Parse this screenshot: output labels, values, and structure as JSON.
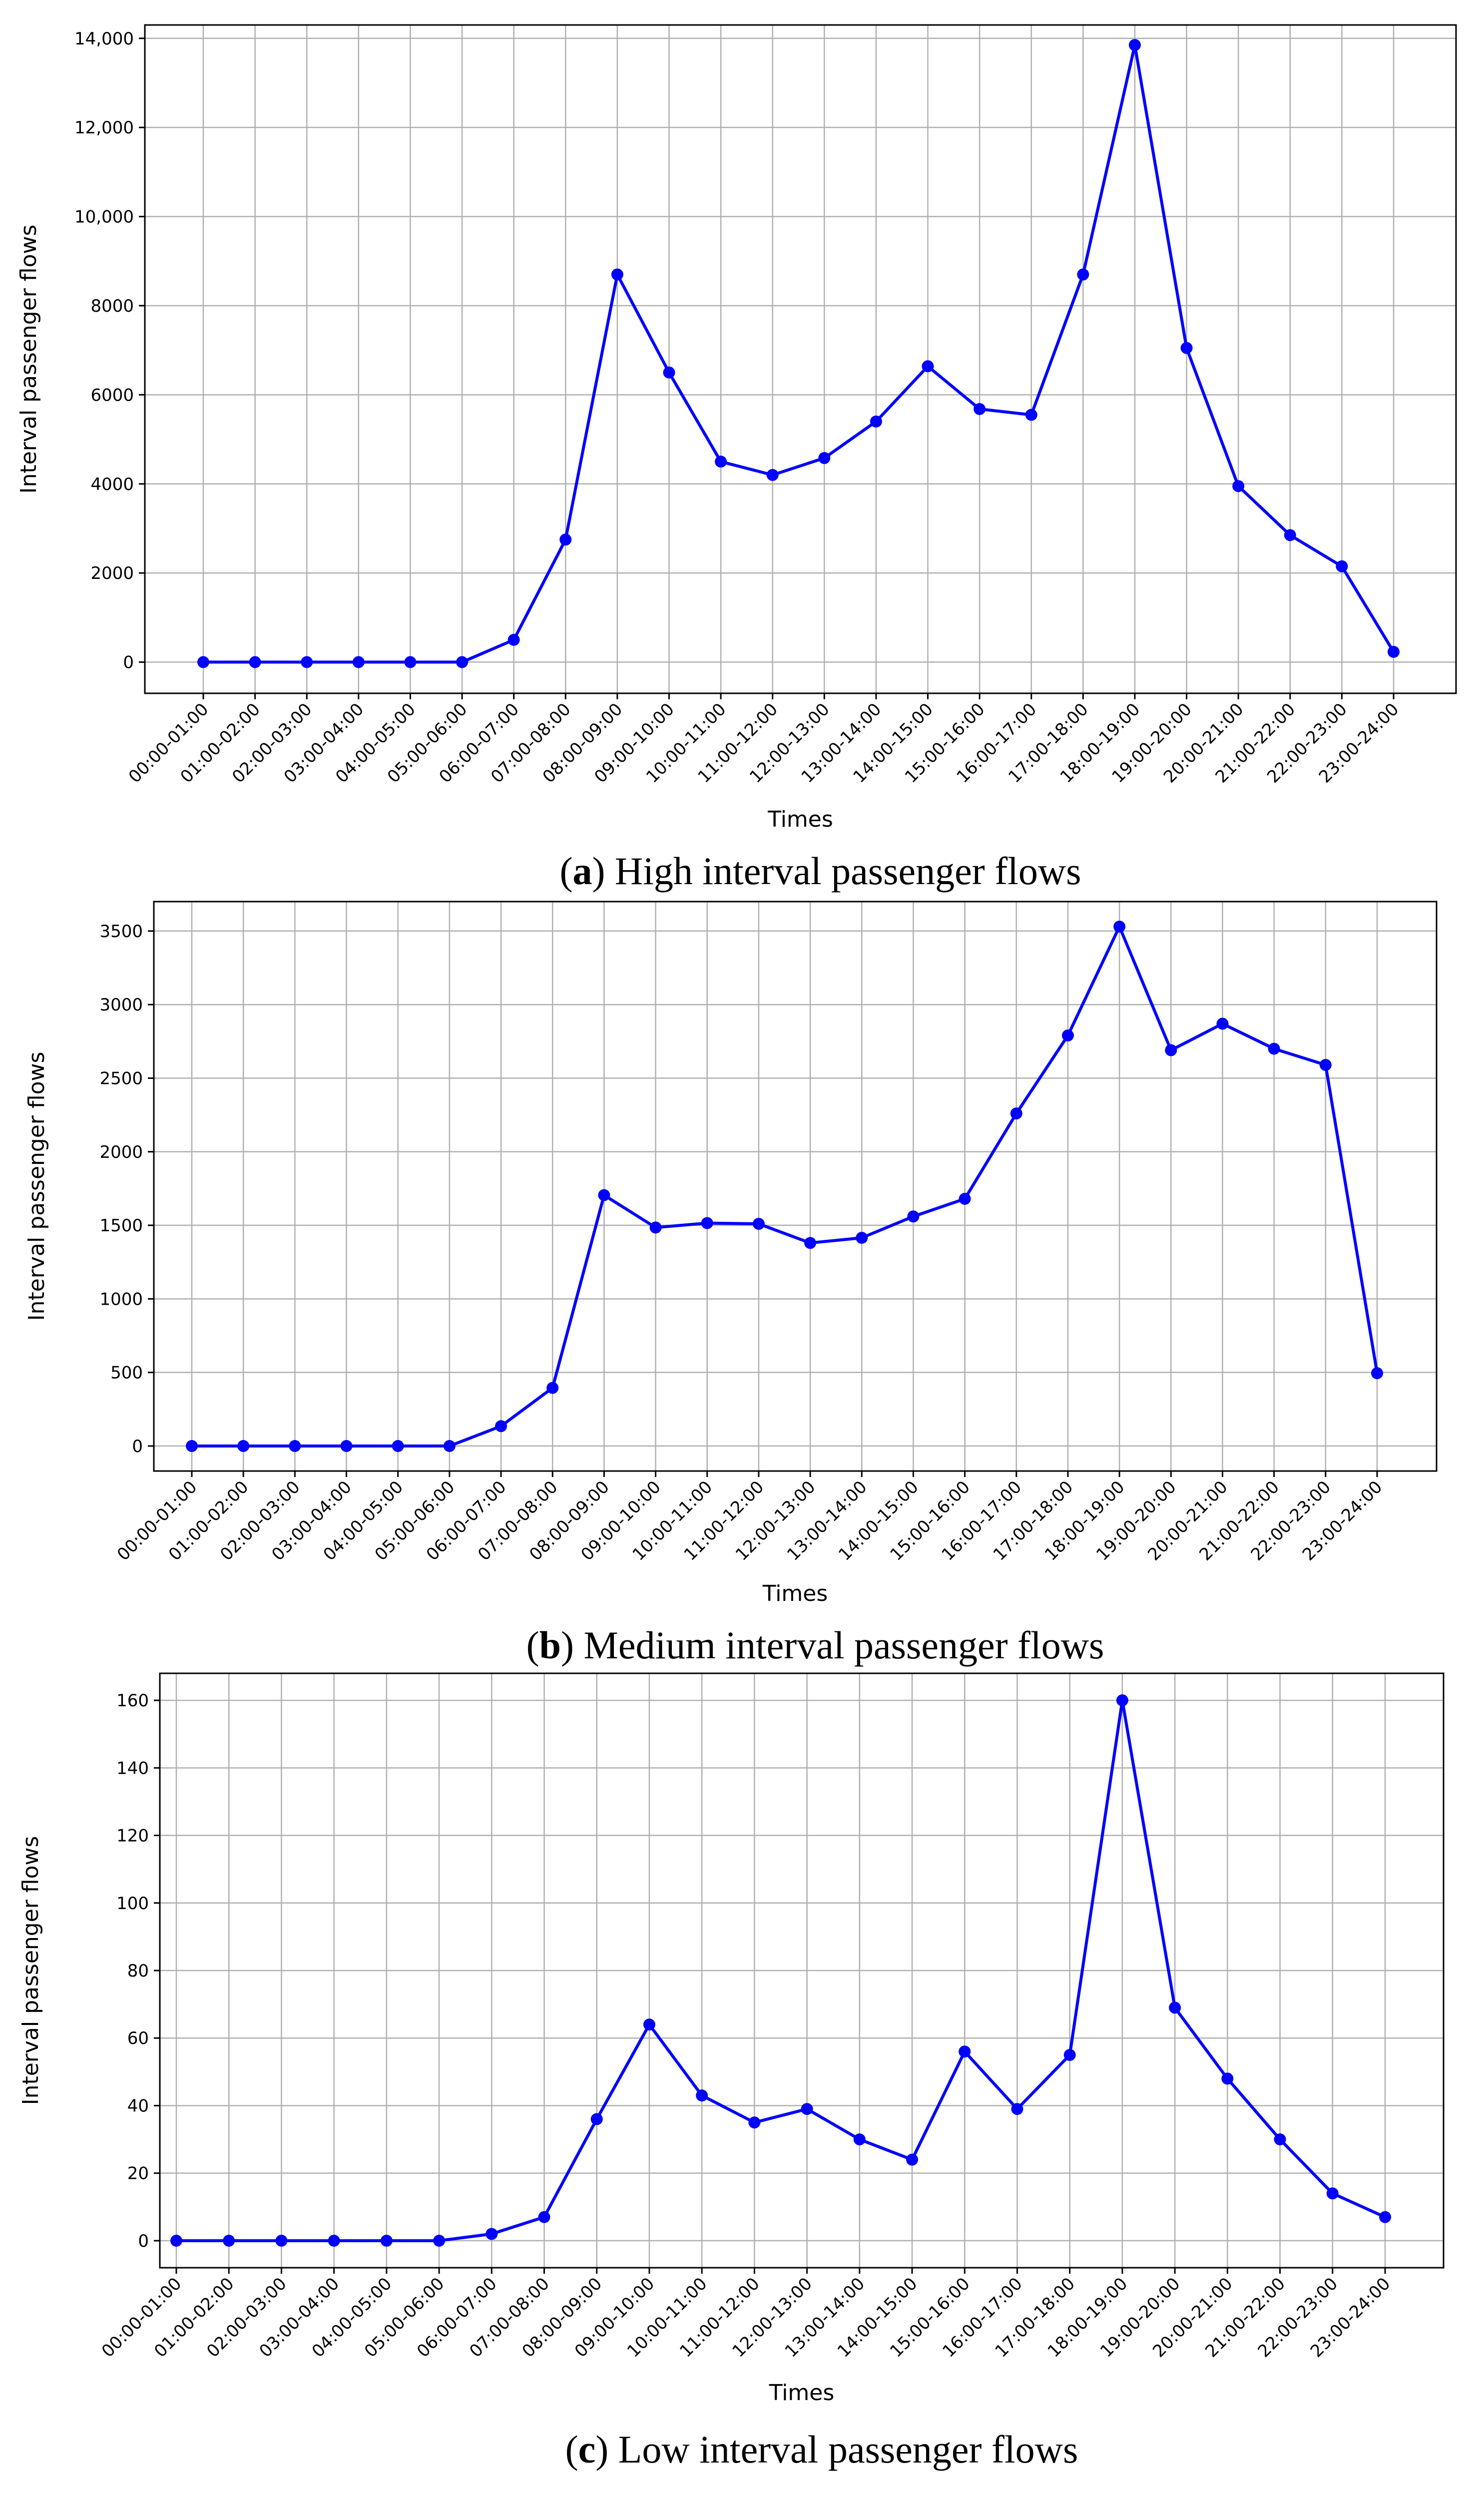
{
  "chart_data": [
    {
      "type": "line",
      "caption_letter": "a",
      "caption_text": " High interval passenger flows",
      "xlabel": "Times",
      "ylabel": "Interval passenger flows",
      "ylim": [
        -700,
        14300
      ],
      "yticks": [
        0,
        2000,
        4000,
        6000,
        8000,
        10000,
        12000,
        14000
      ],
      "ytick_labels": [
        "0",
        "2000",
        "4000",
        "6000",
        "8000",
        "10,000",
        "12,000",
        "14,000"
      ],
      "grid": true,
      "color": "#0000ff",
      "categories": [
        "00:00-01:00",
        "01:00-02:00",
        "02:00-03:00",
        "03:00-04:00",
        "04:00-05:00",
        "05:00-06:00",
        "06:00-07:00",
        "07:00-08:00",
        "08:00-09:00",
        "09:00-10:00",
        "10:00-11:00",
        "11:00-12:00",
        "12:00-13:00",
        "13:00-14:00",
        "14:00-15:00",
        "15:00-16:00",
        "16:00-17:00",
        "17:00-18:00",
        "18:00-19:00",
        "19:00-20:00",
        "20:00-21:00",
        "21:00-22:00",
        "22:00-23:00",
        "23:00-24:00"
      ],
      "values": [
        0,
        0,
        0,
        0,
        0,
        0,
        500,
        2750,
        8700,
        6500,
        4500,
        4200,
        4580,
        5400,
        6640,
        5680,
        5550,
        8700,
        13850,
        7050,
        3950,
        2850,
        2150,
        230
      ]
    },
    {
      "type": "line",
      "caption_letter": "b",
      "caption_text": " Medium interval passenger flows",
      "xlabel": "Times",
      "ylabel": "Interval passenger flows",
      "ylim": [
        -170,
        3700
      ],
      "yticks": [
        0,
        500,
        1000,
        1500,
        2000,
        2500,
        3000,
        3500
      ],
      "ytick_labels": [
        "0",
        "500",
        "1000",
        "1500",
        "2000",
        "2500",
        "3000",
        "3500"
      ],
      "grid": true,
      "color": "#0000ff",
      "categories": [
        "00:00-01:00",
        "01:00-02:00",
        "02:00-03:00",
        "03:00-04:00",
        "04:00-05:00",
        "05:00-06:00",
        "06:00-07:00",
        "07:00-08:00",
        "08:00-09:00",
        "09:00-10:00",
        "10:00-11:00",
        "11:00-12:00",
        "12:00-13:00",
        "13:00-14:00",
        "14:00-15:00",
        "15:00-16:00",
        "16:00-17:00",
        "17:00-18:00",
        "18:00-19:00",
        "19:00-20:00",
        "20:00-21:00",
        "21:00-22:00",
        "22:00-23:00",
        "23:00-24:00"
      ],
      "values": [
        0,
        0,
        0,
        0,
        0,
        0,
        135,
        395,
        1705,
        1485,
        1515,
        1510,
        1380,
        1415,
        1560,
        1680,
        2260,
        2790,
        3530,
        2690,
        2870,
        2700,
        2590,
        495
      ]
    },
    {
      "type": "line",
      "caption_letter": "c",
      "caption_text": " Low interval passenger flows",
      "xlabel": "Times",
      "ylabel": "Interval passenger flows",
      "ylim": [
        -8,
        168
      ],
      "yticks": [
        0,
        20,
        40,
        60,
        80,
        100,
        120,
        140,
        160
      ],
      "ytick_labels": [
        "0",
        "20",
        "40",
        "60",
        "80",
        "100",
        "120",
        "140",
        "160"
      ],
      "grid": true,
      "color": "#0000ff",
      "categories": [
        "00:00-01:00",
        "01:00-02:00",
        "02:00-03:00",
        "03:00-04:00",
        "04:00-05:00",
        "05:00-06:00",
        "06:00-07:00",
        "07:00-08:00",
        "08:00-09:00",
        "09:00-10:00",
        "10:00-11:00",
        "11:00-12:00",
        "12:00-13:00",
        "13:00-14:00",
        "14:00-15:00",
        "15:00-16:00",
        "16:00-17:00",
        "17:00-18:00",
        "18:00-19:00",
        "19:00-20:00",
        "20:00-21:00",
        "21:00-22:00",
        "22:00-23:00",
        "23:00-24:00"
      ],
      "values": [
        0,
        0,
        0,
        0,
        0,
        0,
        2,
        7,
        36,
        64,
        43,
        35,
        39,
        30,
        24,
        56,
        39,
        55,
        160,
        69,
        48,
        30,
        14,
        7
      ]
    }
  ]
}
